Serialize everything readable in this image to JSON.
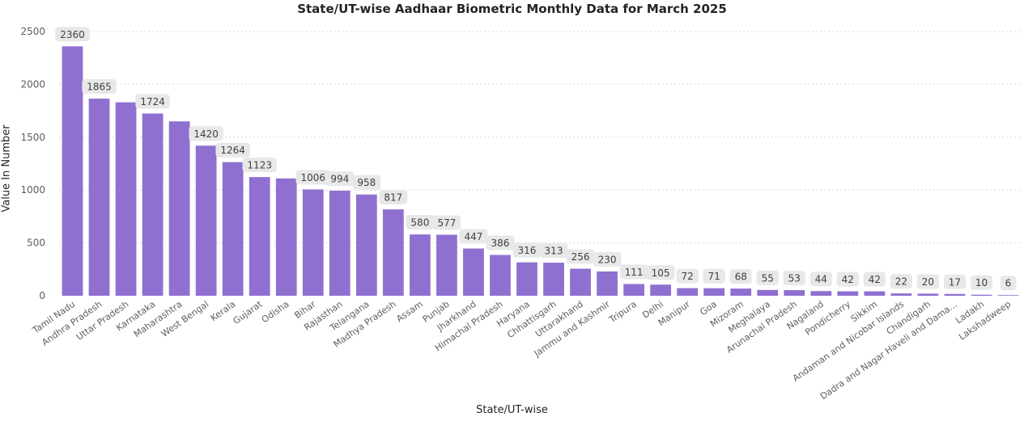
{
  "chart_data": {
    "type": "bar",
    "title": "State/UT-wise Aadhaar Biometric Monthly Data for March 2025",
    "xlabel": "State/UT-wise",
    "ylabel": "Value In Number",
    "ylim": [
      0,
      2500
    ],
    "yticks": [
      0,
      500,
      1000,
      1500,
      2000,
      2500
    ],
    "grid": true,
    "bar_color": "#8f70d0",
    "categories": [
      "Tamil Nadu",
      "Andhra Pradesh",
      "Uttar Pradesh",
      "Karnataka",
      "Maharashtra",
      "West Bengal",
      "Kerala",
      "Gujarat",
      "Odisha",
      "Bihar",
      "Rajasthan",
      "Telangana",
      "Madhya Pradesh",
      "Assam",
      "Punjab",
      "Jharkhand",
      "Himachal Pradesh",
      "Haryana",
      "Chhattisgarh",
      "Uttarakhand",
      "Jammu and Kashmir",
      "Tripura",
      "Delhi",
      "Manipur",
      "Goa",
      "Mizoram",
      "Meghalaya",
      "Arunachal Pradesh",
      "Nagaland",
      "Pondicherry",
      "Sikkim",
      "Andaman and Nicobar Islands",
      "Chandigarh",
      "Dadra and Nagar Haveli and Dama…",
      "Ladakh",
      "Lakshadweep"
    ],
    "values": [
      2360,
      1865,
      1830,
      1724,
      1650,
      1420,
      1264,
      1123,
      1110,
      1006,
      994,
      958,
      817,
      580,
      577,
      447,
      386,
      316,
      313,
      256,
      230,
      111,
      105,
      72,
      71,
      68,
      55,
      53,
      44,
      42,
      42,
      22,
      20,
      17,
      10,
      6
    ],
    "data_labels": [
      true,
      true,
      false,
      true,
      false,
      true,
      true,
      true,
      false,
      true,
      true,
      true,
      true,
      true,
      true,
      true,
      true,
      true,
      true,
      true,
      true,
      true,
      true,
      true,
      true,
      true,
      true,
      true,
      true,
      true,
      true,
      true,
      true,
      true,
      true,
      true
    ]
  }
}
